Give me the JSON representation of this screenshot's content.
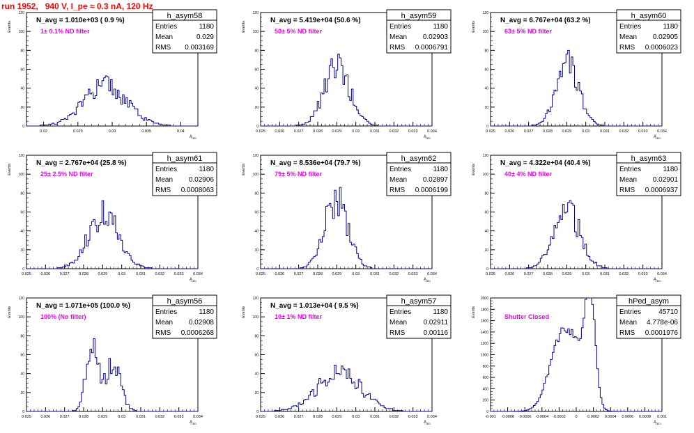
{
  "run_title": "run 1952,   940 V, I_pe ≈ 0.3 nA, 120 Hz",
  "y_axis_label": "Events",
  "x_axis_label": "A",
  "x_axis_subscript": "LED",
  "stats_labels": {
    "entries": "Entries",
    "mean": "Mean",
    "rms": "RMS"
  },
  "chart_data": [
    {
      "type": "histogram",
      "name": "h_asym58",
      "navg": "N_avg = 1.010e+03 ( 0.9 %)",
      "filter": "1± 0.1% ND filter",
      "entries": "1180",
      "mean": "0.029",
      "rms": "0.003169",
      "xlim": [
        0.0175,
        0.0425
      ],
      "ylim": [
        0,
        120
      ],
      "xticks": [
        "0.02",
        "0.025",
        "0.03",
        "0.035",
        "0.04"
      ],
      "xtick_values": [
        0.02,
        0.025,
        0.03,
        0.035,
        0.04
      ],
      "yticks": [
        "0",
        "20",
        "40",
        "60",
        "80",
        "100",
        "120"
      ],
      "ytick_values": [
        0,
        20,
        40,
        60,
        80,
        100,
        120
      ],
      "dist": {
        "center": 0.029,
        "sigma": 0.00317,
        "peak": 42,
        "bin": 0.00025
      }
    },
    {
      "type": "histogram",
      "name": "h_asym59",
      "navg": "N_avg = 5.419e+04 (50.6 %)",
      "filter": "50± 5% ND filter",
      "entries": "1180",
      "mean": "0.02903",
      "rms": "0.0006791",
      "xlim": [
        0.025,
        0.034
      ],
      "ylim": [
        0,
        120
      ],
      "xticks": [
        "0.025",
        "0.026",
        "0.027",
        "0.028",
        "0.029",
        "0.03",
        "0.031",
        "0.032",
        "0.033",
        "0.034"
      ],
      "xtick_values": [
        0.025,
        0.026,
        0.027,
        0.028,
        0.029,
        0.03,
        0.031,
        0.032,
        0.033,
        0.034
      ],
      "yticks": [
        "0",
        "20",
        "40",
        "60",
        "80",
        "100",
        "120"
      ],
      "ytick_values": [
        0,
        20,
        40,
        60,
        80,
        100,
        120
      ],
      "dist": {
        "center": 0.02903,
        "sigma": 0.00068,
        "peak": 62,
        "bin": 9e-05
      }
    },
    {
      "type": "histogram",
      "name": "h_asym60",
      "navg": "N_avg = 6.767e+04 (63.2 %)",
      "filter": "63± 5% ND filter",
      "entries": "1180",
      "mean": "0.02905",
      "rms": "0.0006023",
      "xlim": [
        0.025,
        0.034
      ],
      "ylim": [
        0,
        120
      ],
      "xticks": [
        "0.025",
        "0.026",
        "0.027",
        "0.028",
        "0.029",
        "0.03",
        "0.031",
        "0.032",
        "0.033",
        "0.034"
      ],
      "xtick_values": [
        0.025,
        0.026,
        0.027,
        0.028,
        0.029,
        0.03,
        0.031,
        0.032,
        0.033,
        0.034
      ],
      "yticks": [
        "0",
        "20",
        "40",
        "60",
        "80",
        "100",
        "120"
      ],
      "ytick_values": [
        0,
        20,
        40,
        60,
        80,
        100,
        120
      ],
      "dist": {
        "center": 0.02905,
        "sigma": 0.0006,
        "peak": 66,
        "bin": 9e-05
      }
    },
    {
      "type": "histogram",
      "name": "h_asym61",
      "navg": "N_avg = 2.767e+04 (25.8 %)",
      "filter": "25± 2.5% ND filter",
      "entries": "1180",
      "mean": "0.02906",
      "rms": "0.0008063",
      "xlim": [
        0.025,
        0.034
      ],
      "ylim": [
        0,
        120
      ],
      "xticks": [
        "0.025",
        "0.026",
        "0.027",
        "0.028",
        "0.029",
        "0.03",
        "0.031",
        "0.032",
        "0.033",
        "0.034"
      ],
      "xtick_values": [
        0.025,
        0.026,
        0.027,
        0.028,
        0.029,
        0.03,
        0.031,
        0.032,
        0.033,
        0.034
      ],
      "yticks": [
        "0",
        "20",
        "40",
        "60",
        "80",
        "100",
        "120"
      ],
      "ytick_values": [
        0,
        20,
        40,
        60,
        80,
        100,
        120
      ],
      "dist": {
        "center": 0.02906,
        "sigma": 0.0008,
        "peak": 58,
        "bin": 9e-05
      }
    },
    {
      "type": "histogram",
      "name": "h_asym62",
      "navg": "N_avg = 8.536e+04 (79.7 %)",
      "filter": "79± 5% ND filter",
      "entries": "1180",
      "mean": "0.02897",
      "rms": "0.0006199",
      "xlim": [
        0.025,
        0.034
      ],
      "ylim": [
        0,
        120
      ],
      "xticks": [
        "0.025",
        "0.026",
        "0.027",
        "0.028",
        "0.029",
        "0.03",
        "0.031",
        "0.032",
        "0.033",
        "0.034"
      ],
      "xtick_values": [
        0.025,
        0.026,
        0.027,
        0.028,
        0.029,
        0.03,
        0.031,
        0.032,
        0.033,
        0.034
      ],
      "yticks": [
        "0",
        "20",
        "40",
        "60",
        "80",
        "100",
        "120"
      ],
      "ytick_values": [
        0,
        20,
        40,
        60,
        80,
        100,
        120
      ],
      "dist": {
        "center": 0.02897,
        "sigma": 0.00062,
        "peak": 72,
        "bin": 9e-05
      }
    },
    {
      "type": "histogram",
      "name": "h_asym63",
      "navg": "N_avg = 4.322e+04 (40.4 %)",
      "filter": "40± 4% ND filter",
      "entries": "1180",
      "mean": "0.02901",
      "rms": "0.0006937",
      "xlim": [
        0.025,
        0.034
      ],
      "ylim": [
        0,
        120
      ],
      "xticks": [
        "0.025",
        "0.026",
        "0.027",
        "0.028",
        "0.029",
        "0.03",
        "0.031",
        "0.032",
        "0.033",
        "0.034"
      ],
      "xtick_values": [
        0.025,
        0.026,
        0.027,
        0.028,
        0.029,
        0.03,
        0.031,
        0.032,
        0.033,
        0.034
      ],
      "yticks": [
        "0",
        "20",
        "40",
        "60",
        "80",
        "100",
        "120"
      ],
      "ytick_values": [
        0,
        20,
        40,
        60,
        80,
        100,
        120
      ],
      "dist": {
        "center": 0.02901,
        "sigma": 0.00069,
        "peak": 62,
        "bin": 9e-05
      }
    },
    {
      "type": "histogram",
      "name": "h_asym56",
      "navg": "N_avg = 1.071e+05 (100.0 %)",
      "filter": "100% (No filter)",
      "entries": "1180",
      "mean": "0.02908",
      "rms": "0.0006268",
      "xlim": [
        0.025,
        0.034
      ],
      "ylim": [
        0,
        120
      ],
      "xticks": [
        "0.025",
        "0.026",
        "0.027",
        "0.028",
        "0.029",
        "0.03",
        "0.031",
        "0.032",
        "0.033",
        "0.034"
      ],
      "xtick_values": [
        0.025,
        0.026,
        0.027,
        0.028,
        0.029,
        0.03,
        0.031,
        0.032,
        0.033,
        0.034
      ],
      "yticks": [
        "0",
        "20",
        "40",
        "60",
        "80",
        "100",
        "120"
      ],
      "ytick_values": [
        0,
        20,
        40,
        60,
        80,
        100,
        120
      ],
      "dist": {
        "center": 0.0289,
        "sigma": 0.0006,
        "peak": 72,
        "bin": 9e-05,
        "bimodal": true
      }
    },
    {
      "type": "histogram",
      "name": "h_asym57",
      "navg": "N_avg = 1.013e+04 ( 9.5 %)",
      "filter": "10± 1% ND filter",
      "entries": "1180",
      "mean": "0.02911",
      "rms": "0.00116",
      "xlim": [
        0.025,
        0.034
      ],
      "ylim": [
        0,
        120
      ],
      "xticks": [
        "0.025",
        "0.026",
        "0.027",
        "0.028",
        "0.029",
        "0.03",
        "0.031",
        "0.032",
        "0.033",
        "0.034"
      ],
      "xtick_values": [
        0.025,
        0.026,
        0.027,
        0.028,
        0.029,
        0.03,
        0.031,
        0.032,
        0.033,
        0.034
      ],
      "yticks": [
        "0",
        "20",
        "40",
        "60",
        "80",
        "100",
        "120"
      ],
      "ytick_values": [
        0,
        20,
        40,
        60,
        80,
        100,
        120
      ],
      "dist": {
        "center": 0.02911,
        "sigma": 0.00116,
        "peak": 40,
        "bin": 9e-05
      }
    },
    {
      "type": "histogram",
      "name": "hPed_asym",
      "navg": "",
      "filter": "Shutter Closed",
      "entries": "45710",
      "mean": "4.778e-06",
      "rms": "0.0001976",
      "xlim": [
        -0.001,
        0.001
      ],
      "ylim": [
        0,
        2000
      ],
      "xticks": [
        "-0.001",
        "-0.0008",
        "-0.0006",
        "-0.0004",
        "-0.0002",
        "0",
        "0.0002",
        "0.0004",
        "0.0006",
        "0.0008",
        "0.001"
      ],
      "xtick_values": [
        -0.001,
        -0.0008,
        -0.0006,
        -0.0004,
        -0.0002,
        0,
        0.0002,
        0.0004,
        0.0006,
        0.0008,
        0.001
      ],
      "yticks": [
        "0",
        "200",
        "400",
        "600",
        "800",
        "1000",
        "1200",
        "1400",
        "1600",
        "1800",
        "2000"
      ],
      "ytick_values": [
        0,
        200,
        400,
        600,
        800,
        1000,
        1200,
        1400,
        1600,
        1800,
        2000
      ],
      "dist": {
        "pedestal": true,
        "bin": 2e-05
      }
    }
  ],
  "colors": {
    "title": "#ff0000",
    "filter_text": "#ee00ee",
    "histogram_line": "#000099",
    "axis": "#000000"
  }
}
